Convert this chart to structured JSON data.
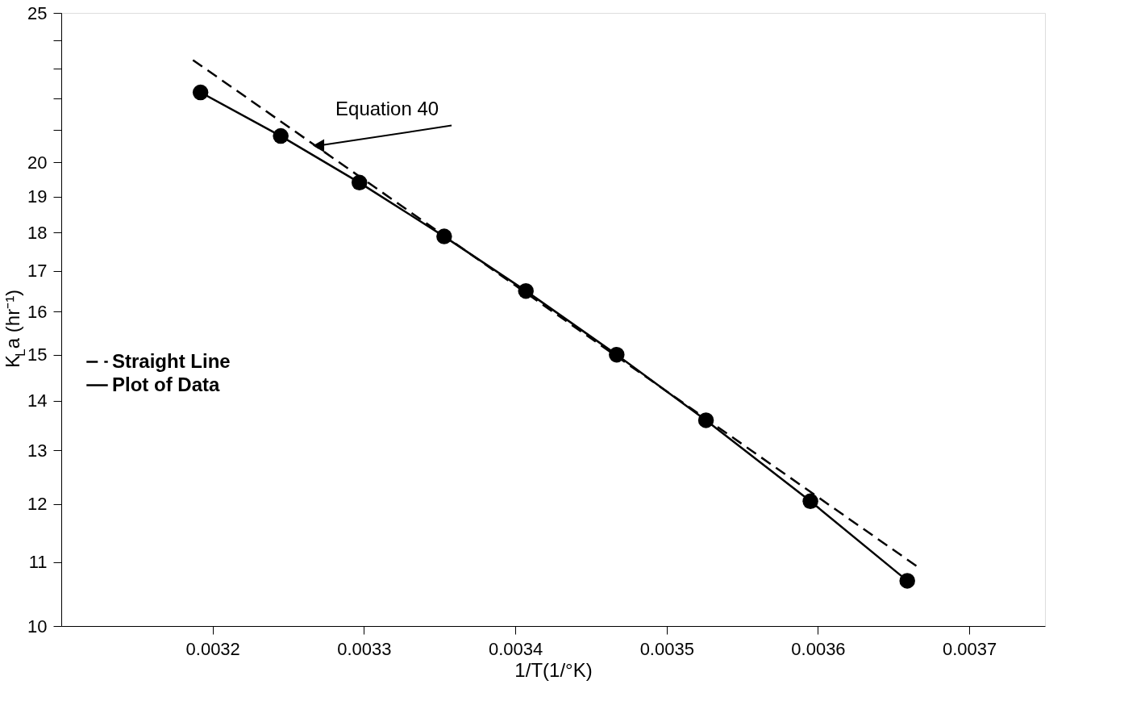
{
  "chart_data": {
    "type": "line",
    "xlabel": "1/T(1/°K)",
    "ylabel": "K$_{L}$a (hr⁻¹)",
    "xlim": [
      0.0031,
      0.00375
    ],
    "xticks": [
      0.0032,
      0.0033,
      0.0034,
      0.0035,
      0.0036,
      0.0037
    ],
    "ylim": [
      10,
      25
    ],
    "yticks": [
      10,
      11,
      12,
      13,
      14,
      15,
      16,
      17,
      18,
      19,
      20,
      {
        "value": 21,
        "label": null
      },
      {
        "value": 22,
        "label": null
      },
      {
        "value": 23,
        "label": null
      },
      {
        "value": 24,
        "label": null
      },
      25
    ],
    "log": "y",
    "grid": false,
    "legend": "left",
    "series": [
      {
        "name": "Straight Line",
        "color": "#000000",
        "line_style": "dashed",
        "marker": "none",
        "x": [
          0.003187,
          0.003665
        ],
        "values": [
          23.3,
          10.94
        ]
      },
      {
        "name": "Plot of Data",
        "color": "#000000",
        "line_style": "solid",
        "marker": "circle",
        "x": [
          0.003192,
          0.003245,
          0.003297,
          0.003353,
          0.003407,
          0.003467,
          0.003526,
          0.003595,
          0.003659
        ],
        "values": [
          22.2,
          20.8,
          19.4,
          17.9,
          16.5,
          15.0,
          13.6,
          12.05,
          10.7
        ]
      }
    ],
    "annotations": [
      {
        "text": "Equation 40",
        "x": 0.00327,
        "y": 20.5
      }
    ]
  }
}
